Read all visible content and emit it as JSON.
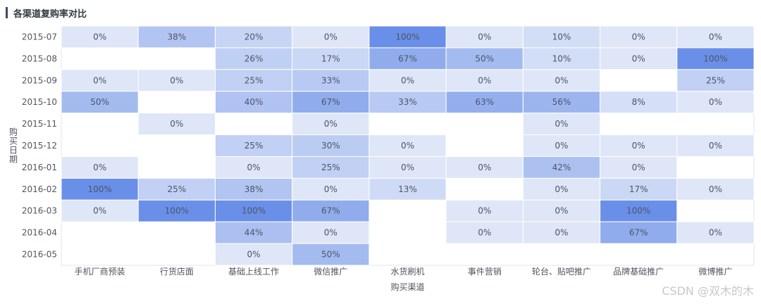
{
  "chart_data": {
    "type": "heatmap",
    "title": "各渠道复购率对比",
    "xlabel": "购买渠道",
    "ylabel": "购买日期",
    "x_categories": [
      "手机厂商预装",
      "行货店面",
      "基础上线工作",
      "微信推广",
      "水货刷机",
      "事件营销",
      "轮台、贴吧推广",
      "品牌基础推广",
      "微博推广"
    ],
    "y_categories": [
      "2015-07",
      "2015-08",
      "2015-09",
      "2015-10",
      "2015-11",
      "2015-12",
      "2016-01",
      "2016-02",
      "2016-03",
      "2016-04",
      "2016-05"
    ],
    "values": [
      [
        0,
        38,
        20,
        0,
        100,
        0,
        10,
        0,
        0
      ],
      [
        null,
        null,
        26,
        17,
        67,
        50,
        10,
        0,
        100
      ],
      [
        0,
        0,
        25,
        33,
        0,
        0,
        0,
        null,
        25
      ],
      [
        50,
        null,
        40,
        67,
        33,
        63,
        56,
        8,
        0
      ],
      [
        null,
        0,
        null,
        0,
        null,
        null,
        0,
        null,
        null
      ],
      [
        null,
        null,
        25,
        30,
        0,
        null,
        0,
        0,
        0
      ],
      [
        0,
        null,
        0,
        25,
        0,
        0,
        42,
        0,
        null
      ],
      [
        100,
        25,
        38,
        0,
        13,
        null,
        0,
        17,
        0
      ],
      [
        0,
        100,
        100,
        67,
        null,
        0,
        0,
        100,
        null
      ],
      [
        null,
        null,
        44,
        0,
        null,
        0,
        0,
        67,
        0
      ],
      [
        null,
        null,
        0,
        50,
        null,
        null,
        null,
        null,
        null
      ]
    ],
    "value_suffix": "%",
    "color_low": "#dee6f8",
    "color_high": "#6a8fe8",
    "vmin": 0,
    "vmax": 100,
    "grid": false
  },
  "watermark": "CSDN @双木的木"
}
